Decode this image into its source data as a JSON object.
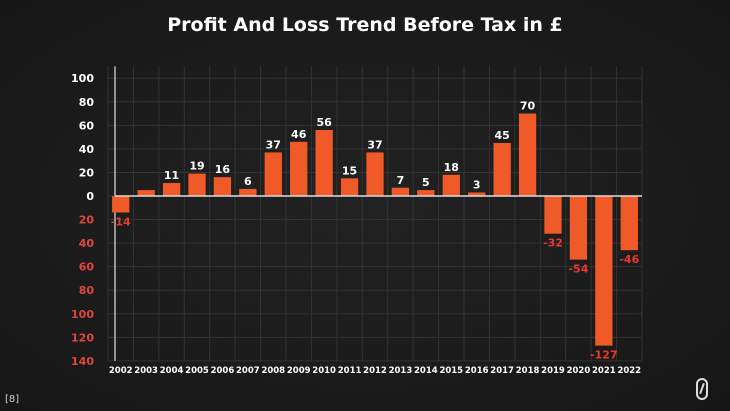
{
  "footnote": "[8]",
  "logo": "brand-logo-icon",
  "colors": {
    "bar": "#f05a28",
    "pos_label": "#ffffff",
    "neg_label": "#e8372c",
    "pos_tick": "#ffffff",
    "neg_tick": "#e0463c"
  },
  "chart_data": {
    "type": "bar",
    "title": "Profit And Loss Trend Before Tax in £",
    "xlabel": "",
    "ylabel": "",
    "categories": [
      "2002",
      "2003",
      "2004",
      "2005",
      "2006",
      "2007",
      "2008",
      "2009",
      "2010",
      "2011",
      "2012",
      "2013",
      "2014",
      "2015",
      "2016",
      "2017",
      "2018",
      "2019",
      "2020",
      "2021",
      "2022"
    ],
    "values": [
      -14,
      5,
      11,
      19,
      16,
      6,
      37,
      46,
      56,
      15,
      37,
      7,
      5,
      18,
      3,
      45,
      70,
      -32,
      -54,
      -127,
      -46
    ],
    "data_labels": [
      "-14",
      "",
      "11",
      "19",
      "16",
      "6",
      "37",
      "46",
      "56",
      "15",
      "37",
      "7",
      "5",
      "18",
      "3",
      "45",
      "70",
      "-32",
      "-54",
      "-127",
      "-46"
    ],
    "ylim": [
      -140,
      110
    ],
    "yticks": [
      100,
      80,
      60,
      40,
      20,
      0,
      -20,
      -40,
      -60,
      -80,
      -100,
      -120,
      -140
    ],
    "ytick_labels": [
      "100",
      "80",
      "60",
      "40",
      "20",
      "0",
      "20",
      "40",
      "60",
      "80",
      "100",
      "120",
      "140"
    ],
    "grid": true,
    "legend": "none"
  }
}
